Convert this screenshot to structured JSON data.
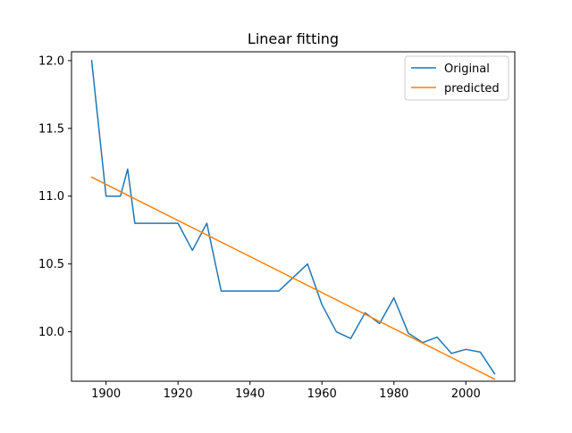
{
  "chart_data": {
    "type": "line",
    "title": "Linear fitting",
    "xlabel": "",
    "ylabel": "",
    "xlim": [
      1890.4,
      2013.6
    ],
    "ylim": [
      9.635,
      12.065
    ],
    "xticks": [
      1900,
      1920,
      1940,
      1960,
      1980,
      2000
    ],
    "yticks": [
      10.0,
      10.5,
      11.0,
      11.5,
      12.0
    ],
    "xtick_labels": [
      "1900",
      "1920",
      "1940",
      "1960",
      "1980",
      "2000"
    ],
    "ytick_labels": [
      "10.0",
      "10.5",
      "11.0",
      "11.5",
      "12.0"
    ],
    "grid": false,
    "legend_position": "top-right",
    "series": [
      {
        "name": "Original",
        "color": "#1f77b4",
        "x": [
          1896,
          1900,
          1904,
          1906,
          1908,
          1912,
          1920,
          1924,
          1928,
          1932,
          1936,
          1948,
          1952,
          1956,
          1960,
          1964,
          1968,
          1972,
          1976,
          1980,
          1984,
          1988,
          1992,
          1996,
          2000,
          2004,
          2008
        ],
        "y": [
          12.0,
          11.0,
          11.0,
          11.2,
          10.8,
          10.8,
          10.8,
          10.6,
          10.8,
          10.3,
          10.3,
          10.3,
          10.4,
          10.5,
          10.2,
          10.0,
          9.95,
          10.14,
          10.06,
          10.25,
          9.99,
          9.92,
          9.96,
          9.84,
          9.87,
          9.85,
          9.69
        ]
      },
      {
        "name": "predicted",
        "color": "#ff7f0e",
        "x": [
          1896,
          2008
        ],
        "y": [
          11.14,
          9.65
        ]
      }
    ]
  }
}
